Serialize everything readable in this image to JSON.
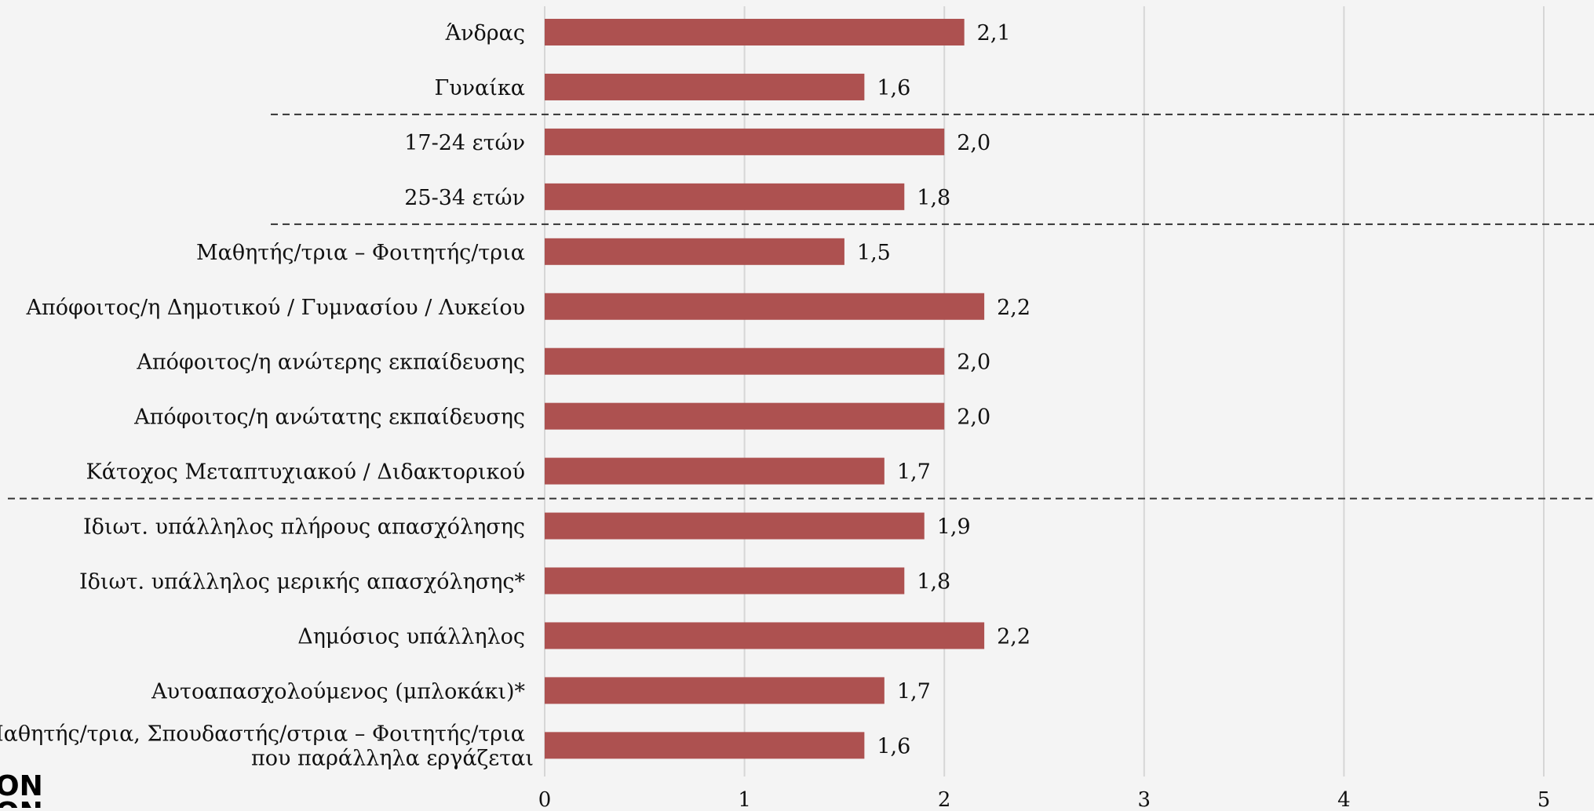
{
  "chart_data": {
    "type": "bar",
    "orientation": "horizontal",
    "categories": [
      [
        "Άνδρας"
      ],
      [
        "Γυναίκα"
      ],
      [
        "17-24 ετών"
      ],
      [
        "25-34 ετών"
      ],
      [
        "Μαθητής/τρια – Φοιτητής/τρια"
      ],
      [
        "Απόφοιτος/η Δημοτικού / Γυμνασίου / Λυκείου"
      ],
      [
        "Απόφοιτος/η ανώτερης εκπαίδευσης"
      ],
      [
        "Απόφοιτος/η ανώτατης εκπαίδευσης"
      ],
      [
        "Κάτοχος Μεταπτυχιακού / Διδακτορικού"
      ],
      [
        "Ιδιωτ. υπάλληλος πλήρους απασχόλησης"
      ],
      [
        "Ιδιωτ. υπάλληλος μερικής απασχόλησης*"
      ],
      [
        "Δημόσιος υπάλληλος"
      ],
      [
        "Αυτοαπασχολούμενος (μπλοκάκι)*"
      ],
      [
        "Μαθητής/τρια, Σπουδαστής/στρια – Φοιτητής/τρια",
        "που παράλληλα εργάζεται"
      ]
    ],
    "values": [
      2.1,
      1.6,
      2.0,
      1.8,
      1.5,
      2.2,
      2.0,
      2.0,
      1.7,
      1.9,
      1.8,
      2.2,
      1.7,
      1.6
    ],
    "value_labels": [
      "2,1",
      "1,6",
      "2,0",
      "1,8",
      "1,5",
      "2,2",
      "2,0",
      "2,0",
      "1,7",
      "1,9",
      "1,8",
      "2,2",
      "1,7",
      "1,6"
    ],
    "group_separators_after": [
      1,
      3,
      8
    ],
    "xlim": [
      0,
      5
    ],
    "x_ticks": [
      "0",
      "1",
      "2",
      "3",
      "4",
      "5"
    ],
    "bar_color": "#ad5150",
    "grid": true,
    "title": "",
    "xlabel": "",
    "ylabel": ""
  },
  "logo": {
    "text": "ON"
  }
}
